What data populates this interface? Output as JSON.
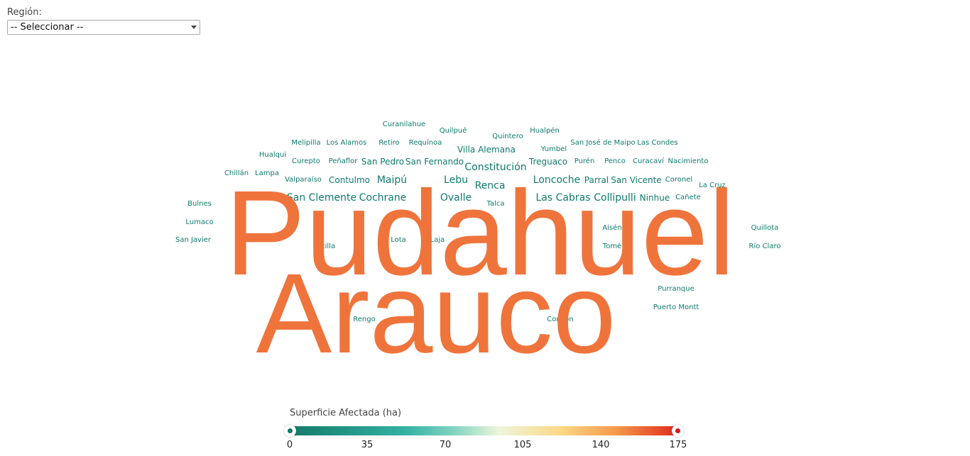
{
  "filter": {
    "label": "Región:",
    "selected": "-- Seleccionar --"
  },
  "words": [
    {
      "text": "Curanilahue",
      "level": 1
    },
    {
      "text": "Quilpué",
      "level": 1
    },
    {
      "text": "Quintero",
      "level": 1
    },
    {
      "text": "Hualpén",
      "level": 1
    },
    {
      "text": "Melipilla",
      "level": 1
    },
    {
      "text": "Los Alamos",
      "level": 1
    },
    {
      "text": "Retiro",
      "level": 1
    },
    {
      "text": "Requínoa",
      "level": 1
    },
    {
      "text": "Villa Alemana",
      "level": 2
    },
    {
      "text": "Yumbel",
      "level": 1
    },
    {
      "text": "San José de Maipo",
      "level": 1
    },
    {
      "text": "Las Condes",
      "level": 1
    },
    {
      "text": "Hualqui",
      "level": 1
    },
    {
      "text": "Curepto",
      "level": 1
    },
    {
      "text": "Peñaflor",
      "level": 1
    },
    {
      "text": "San Pedro",
      "level": 2
    },
    {
      "text": "San Fernando",
      "level": 2
    },
    {
      "text": "Constitución",
      "level": 3
    },
    {
      "text": "Treguaco",
      "level": 2
    },
    {
      "text": "Purén",
      "level": 1
    },
    {
      "text": "Penco",
      "level": 1
    },
    {
      "text": "Curacaví",
      "level": 1
    },
    {
      "text": "Nacimiento",
      "level": 1
    },
    {
      "text": "Chillán",
      "level": 1
    },
    {
      "text": "Lampa",
      "level": 1
    },
    {
      "text": "Valparaíso",
      "level": 1
    },
    {
      "text": "Contulmo",
      "level": 2
    },
    {
      "text": "Maipú",
      "level": 3
    },
    {
      "text": "Lebu",
      "level": 3
    },
    {
      "text": "Renca",
      "level": 3
    },
    {
      "text": "Loncoche",
      "level": 3
    },
    {
      "text": "Parral",
      "level": 2
    },
    {
      "text": "San Vicente",
      "level": 2
    },
    {
      "text": "Coronel",
      "level": 1
    },
    {
      "text": "La Cruz",
      "level": 1
    },
    {
      "text": "San Clemente",
      "level": 3
    },
    {
      "text": "Cochrane",
      "level": 3
    },
    {
      "text": "Ovalle",
      "level": 3
    },
    {
      "text": "Talca",
      "level": 1
    },
    {
      "text": "Las Cabras",
      "level": 3
    },
    {
      "text": "Collipulli",
      "level": 3
    },
    {
      "text": "Ninhue",
      "level": 2
    },
    {
      "text": "Cañete",
      "level": 1
    },
    {
      "text": "Bulnes",
      "level": 1
    },
    {
      "text": "Lumaco",
      "level": 1
    },
    {
      "text": "San Javier",
      "level": 1
    },
    {
      "text": "Aisén",
      "level": 1
    },
    {
      "text": "Quillota",
      "level": 1
    },
    {
      "text": "Ercilla",
      "level": 1
    },
    {
      "text": "Lota",
      "level": 1
    },
    {
      "text": "Laja",
      "level": 1
    },
    {
      "text": "Tomé",
      "level": 1
    },
    {
      "text": "Río Claro",
      "level": 1
    },
    {
      "text": "Purranque",
      "level": 1
    },
    {
      "text": "Puerto Montt",
      "level": 1
    },
    {
      "text": "Rengo",
      "level": 1
    },
    {
      "text": "Concón",
      "level": 1
    },
    {
      "text": "Pudahuel",
      "level": "max"
    },
    {
      "text": "Arauco",
      "level": "max"
    }
  ],
  "legend": {
    "title": "Superficie Afectada (ha)",
    "ticks": [
      "0",
      "35",
      "70",
      "105",
      "140",
      "175"
    ],
    "min": 0,
    "max": 175,
    "colors": {
      "low": "#0f7b6c",
      "mid": "#eef5dc",
      "high": "#d7191c",
      "largest_word": "#ef743c"
    }
  }
}
